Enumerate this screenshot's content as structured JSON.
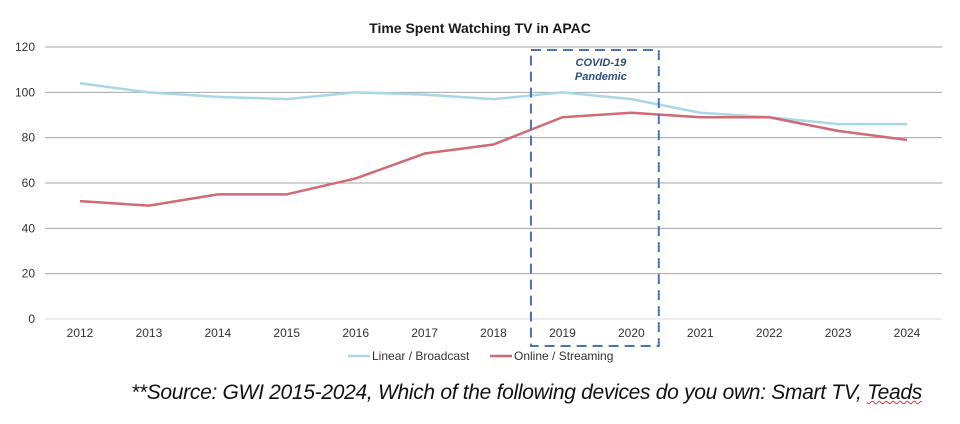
{
  "chart_data": {
    "type": "line",
    "title": "Time Spent Watching TV in APAC",
    "xlabel": "",
    "ylabel": "",
    "categories": [
      "2012",
      "2013",
      "2014",
      "2015",
      "2016",
      "2017",
      "2018",
      "2019",
      "2020",
      "2021",
      "2022",
      "2023",
      "2024"
    ],
    "ylim": [
      0,
      120
    ],
    "yticks": [
      0,
      20,
      40,
      60,
      80,
      100,
      120
    ],
    "grid": true,
    "legend_position": "bottom",
    "series": [
      {
        "name": "Linear / Broadcast",
        "color": "#a8d8e3",
        "values": [
          104,
          100,
          98,
          97,
          100,
          99,
          97,
          100,
          97,
          91,
          89,
          86,
          86
        ]
      },
      {
        "name": "Online / Streaming",
        "color": "#d06a74",
        "values": [
          52,
          50,
          55,
          55,
          62,
          73,
          77,
          89,
          91,
          89,
          89,
          83,
          79
        ]
      }
    ],
    "annotation": {
      "lines": [
        "COVID-19",
        "Pandemic"
      ],
      "range": [
        "2019",
        "2020"
      ],
      "color": "#4a72b8",
      "text_color": "#2f4f7f"
    }
  },
  "source": {
    "text": "**Source: GWI 2015-2024, Which of the following devices do you own: Smart TV, ",
    "underlined": "Teads"
  }
}
